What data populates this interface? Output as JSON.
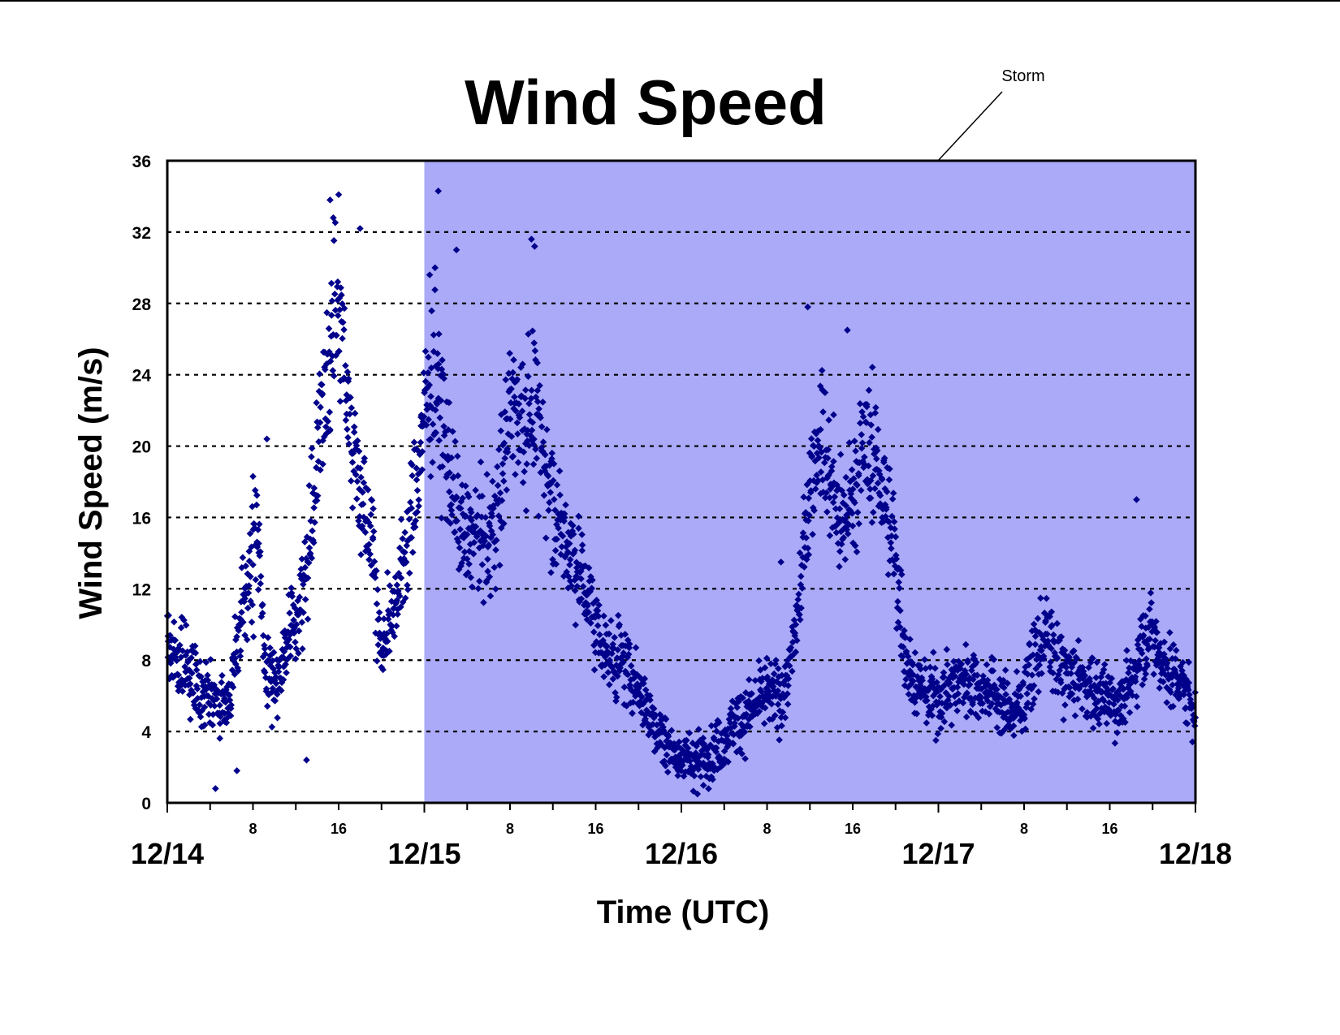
{
  "chart_data": {
    "type": "scatter",
    "title": "Wind Speed",
    "xlabel": "Time (UTC)",
    "ylabel": "Wind Speed (m/s)",
    "ylim": [
      0,
      36
    ],
    "yticks": [
      "0",
      "4",
      "8",
      "12",
      "16",
      "20",
      "24",
      "28",
      "32",
      "36"
    ],
    "x_range_hours": [
      0,
      96
    ],
    "date_ticks": [
      "12/14",
      "12/15",
      "12/16",
      "12/17",
      "12/18"
    ],
    "hour_ticks": [
      "8",
      "16"
    ],
    "grid": "horizontal dotted",
    "legend": "none",
    "annotation": {
      "text": "Storm",
      "shaded_span_hours": [
        24,
        96
      ]
    },
    "series": [
      {
        "marker": "diamond",
        "color": "#00008b",
        "trend_points_hours_ms": [
          [
            0,
            9.0
          ],
          [
            1,
            8.0
          ],
          [
            2,
            7.5
          ],
          [
            3,
            6.5
          ],
          [
            4,
            6.0
          ],
          [
            5,
            5.5
          ],
          [
            6,
            6.5
          ],
          [
            7,
            10.5
          ],
          [
            8,
            13.5
          ],
          [
            8.5,
            16.0
          ],
          [
            9,
            8.0
          ],
          [
            10,
            6.5
          ],
          [
            11,
            8.5
          ],
          [
            12,
            10.0
          ],
          [
            13,
            13.0
          ],
          [
            14,
            19.0
          ],
          [
            15,
            25.0
          ],
          [
            16,
            27.5
          ],
          [
            17,
            22.0
          ],
          [
            18,
            17.5
          ],
          [
            19,
            16.0
          ],
          [
            20,
            8.0
          ],
          [
            21,
            11.0
          ],
          [
            22,
            13.0
          ],
          [
            23,
            16.5
          ],
          [
            24,
            22.0
          ],
          [
            25,
            23.5
          ],
          [
            26,
            20.0
          ],
          [
            27,
            16.0
          ],
          [
            28,
            14.5
          ],
          [
            29,
            15.0
          ],
          [
            30,
            14.5
          ],
          [
            31,
            17.0
          ],
          [
            32,
            22.5
          ],
          [
            33,
            22.0
          ],
          [
            34,
            22.0
          ],
          [
            35,
            20.5
          ],
          [
            36,
            17.0
          ],
          [
            37,
            15.0
          ],
          [
            38,
            14.0
          ],
          [
            39,
            12.0
          ],
          [
            40,
            10.0
          ],
          [
            41,
            8.5
          ],
          [
            42,
            8.0
          ],
          [
            43,
            7.5
          ],
          [
            44,
            6.5
          ],
          [
            45,
            5.0
          ],
          [
            46,
            4.0
          ],
          [
            47,
            3.0
          ],
          [
            48,
            2.5
          ],
          [
            49,
            2.3
          ],
          [
            50,
            2.5
          ],
          [
            51,
            3.0
          ],
          [
            52,
            3.5
          ],
          [
            53,
            4.5
          ],
          [
            54,
            5.0
          ],
          [
            55,
            5.5
          ],
          [
            56,
            6.0
          ],
          [
            57,
            6.0
          ],
          [
            58,
            7.0
          ],
          [
            59,
            11.0
          ],
          [
            60,
            18.0
          ],
          [
            61,
            21.0
          ],
          [
            62,
            18.0
          ],
          [
            63,
            15.5
          ],
          [
            64,
            17.5
          ],
          [
            65,
            20.0
          ],
          [
            66,
            19.5
          ],
          [
            67,
            17.0
          ],
          [
            68,
            13.5
          ],
          [
            69,
            8.0
          ],
          [
            70,
            6.5
          ],
          [
            71,
            6.0
          ],
          [
            72,
            6.0
          ],
          [
            73,
            6.5
          ],
          [
            74,
            7.0
          ],
          [
            75,
            7.0
          ],
          [
            76,
            6.5
          ],
          [
            77,
            6.5
          ],
          [
            78,
            5.5
          ],
          [
            79,
            5.0
          ],
          [
            80,
            6.0
          ],
          [
            81,
            8.0
          ],
          [
            82,
            9.5
          ],
          [
            83,
            8.0
          ],
          [
            84,
            7.0
          ],
          [
            85,
            7.0
          ],
          [
            86,
            6.5
          ],
          [
            87,
            6.0
          ],
          [
            88,
            6.0
          ],
          [
            89,
            5.5
          ],
          [
            90,
            6.5
          ],
          [
            91,
            9.0
          ],
          [
            92,
            9.5
          ],
          [
            93,
            8.0
          ],
          [
            94,
            7.0
          ],
          [
            95,
            6.5
          ],
          [
            96,
            5.0
          ]
        ],
        "peak_points_hours_ms": [
          [
            4.5,
            0.8
          ],
          [
            8.0,
            18.3
          ],
          [
            9.3,
            20.4
          ],
          [
            15.2,
            33.8
          ],
          [
            15.5,
            32.8
          ],
          [
            16.0,
            34.1
          ],
          [
            18.0,
            32.2
          ],
          [
            24.5,
            29.6
          ],
          [
            25.0,
            30.0
          ],
          [
            25.3,
            34.3
          ],
          [
            27.0,
            31.0
          ],
          [
            34.0,
            31.6
          ],
          [
            34.3,
            31.2
          ],
          [
            57.3,
            13.5
          ],
          [
            59.8,
            27.8
          ],
          [
            63.5,
            26.5
          ],
          [
            90.5,
            17.0
          ],
          [
            49.5,
            0.5
          ],
          [
            6.5,
            1.8
          ],
          [
            13.0,
            2.4
          ]
        ]
      }
    ]
  }
}
